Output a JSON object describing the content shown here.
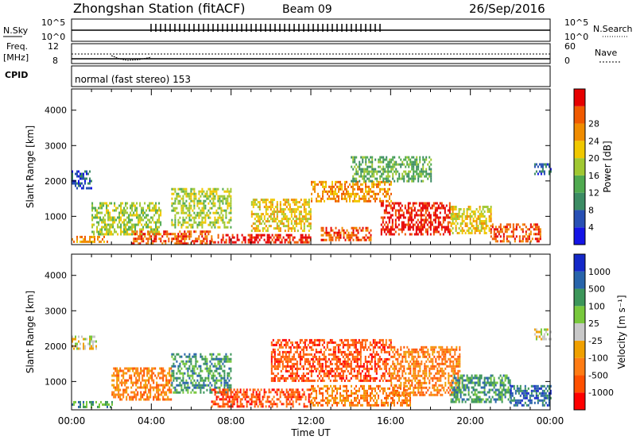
{
  "header": {
    "title": "Zhongshan Station (fitACF)",
    "beam": "Beam 09",
    "date": "26/Sep/2016"
  },
  "top_panels": {
    "nsky_label": "N.Sky",
    "nsky_ticks": [
      "10^5",
      "10^0"
    ],
    "nsearch_label": "N.Search",
    "nsearch_ticks": [
      "10^5",
      "10^0"
    ],
    "freq_label": "Freq.",
    "freq_unit": "[MHz]",
    "freq_ticks": [
      "12",
      "8"
    ],
    "nave_label": "Nave",
    "nave_ticks": [
      "60",
      "0"
    ],
    "cpid_label": "CPID",
    "cpid_text": "normal (fast stereo) 153"
  },
  "colors": {
    "power_scale": [
      "#1414e6",
      "#2850b4",
      "#3c8c64",
      "#50aa50",
      "#a0c832",
      "#f0c800",
      "#f08c00",
      "#f05a00",
      "#e60000"
    ],
    "velocity_scale": [
      "#ff0000",
      "#ff5000",
      "#ff7c14",
      "#f0a000",
      "#c8c8c8",
      "#78c83c",
      "#3c965a",
      "#2864aa",
      "#1428c8"
    ]
  },
  "chart_data": [
    {
      "type": "heatmap",
      "name": "power",
      "ylabel": "Slant Range [km]",
      "yticks": [
        "1000",
        "2000",
        "3000",
        "4000"
      ],
      "ylim": [
        200,
        4600
      ],
      "xlim": [
        0,
        24
      ],
      "colorbar_label": "Power [dB]",
      "colorbar_ticks": [
        "4",
        "8",
        "12",
        "16",
        "20",
        "24",
        "28"
      ],
      "regions": [
        {
          "t0": 0.0,
          "t1": 1.8,
          "r0": 300,
          "r1": 450,
          "level": 6
        },
        {
          "t0": 0.0,
          "t1": 1.0,
          "r0": 1800,
          "r1": 2300,
          "level": 1
        },
        {
          "t0": 1.0,
          "t1": 4.5,
          "r0": 500,
          "r1": 1400,
          "level": 4
        },
        {
          "t0": 3.0,
          "t1": 7.0,
          "r0": 200,
          "r1": 600,
          "level": 7
        },
        {
          "t0": 5.0,
          "t1": 8.0,
          "r0": 700,
          "r1": 1800,
          "level": 4
        },
        {
          "t0": 7.0,
          "t1": 12.0,
          "r0": 250,
          "r1": 500,
          "level": 8
        },
        {
          "t0": 9.0,
          "t1": 12.0,
          "r0": 600,
          "r1": 1500,
          "level": 5
        },
        {
          "t0": 12.0,
          "t1": 16.0,
          "r0": 1400,
          "r1": 2000,
          "level": 6
        },
        {
          "t0": 12.5,
          "t1": 15.0,
          "r0": 350,
          "r1": 700,
          "level": 7
        },
        {
          "t0": 15.5,
          "t1": 19.0,
          "r0": 500,
          "r1": 1400,
          "level": 8
        },
        {
          "t0": 14.0,
          "t1": 18.0,
          "r0": 2000,
          "r1": 2700,
          "level": 3
        },
        {
          "t0": 19.0,
          "t1": 21.0,
          "r0": 500,
          "r1": 1300,
          "level": 5
        },
        {
          "t0": 21.0,
          "t1": 23.5,
          "r0": 300,
          "r1": 800,
          "level": 7
        },
        {
          "t0": 23.2,
          "t1": 24.0,
          "r0": 2200,
          "r1": 2500,
          "level": 1
        }
      ]
    },
    {
      "type": "heatmap",
      "name": "velocity",
      "xlabel": "Time UT",
      "ylabel": "Slant Range [km]",
      "yticks": [
        "1000",
        "2000",
        "3000",
        "4000"
      ],
      "ylim": [
        200,
        4600
      ],
      "xlim": [
        0,
        24
      ],
      "xticks": [
        "00:00",
        "04:00",
        "08:00",
        "12:00",
        "16:00",
        "20:00",
        "00:00"
      ],
      "colorbar_label": "Velocity [m s⁻¹]",
      "colorbar_ticks": [
        "-1000",
        "-500",
        "-100",
        "-25",
        "25",
        "100",
        "500",
        "1000"
      ],
      "regions": [
        {
          "t0": 0.0,
          "t1": 2.0,
          "r0": 300,
          "r1": 450,
          "level": 6
        },
        {
          "t0": 0.0,
          "t1": 1.2,
          "r0": 1900,
          "r1": 2300,
          "level": 4
        },
        {
          "t0": 2.0,
          "t1": 5.0,
          "r0": 500,
          "r1": 1400,
          "level": 2
        },
        {
          "t0": 5.0,
          "t1": 8.0,
          "r0": 700,
          "r1": 1800,
          "level": 6
        },
        {
          "t0": 7.0,
          "t1": 12.0,
          "r0": 300,
          "r1": 800,
          "level": 1
        },
        {
          "t0": 10.0,
          "t1": 16.0,
          "r0": 1000,
          "r1": 2200,
          "level": 1
        },
        {
          "t0": 12.0,
          "t1": 17.0,
          "r0": 300,
          "r1": 900,
          "level": 2
        },
        {
          "t0": 16.0,
          "t1": 19.5,
          "r0": 600,
          "r1": 2000,
          "level": 2
        },
        {
          "t0": 19.0,
          "t1": 22.0,
          "r0": 400,
          "r1": 1200,
          "level": 6
        },
        {
          "t0": 22.0,
          "t1": 24.0,
          "r0": 300,
          "r1": 900,
          "level": 7
        },
        {
          "t0": 23.2,
          "t1": 24.0,
          "r0": 2200,
          "r1": 2500,
          "level": 4
        }
      ]
    }
  ]
}
